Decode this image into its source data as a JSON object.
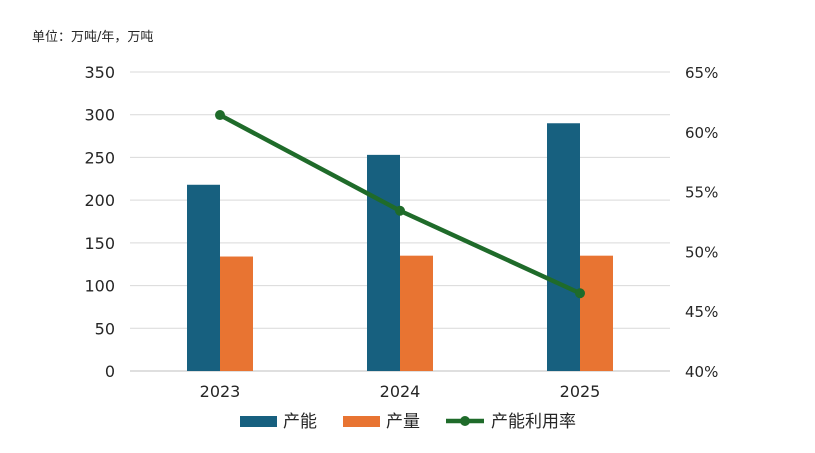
{
  "chart_data": {
    "type": "bar",
    "unit_note": "单位：万吨/年，万吨",
    "categories": [
      "2023",
      "2024",
      "2025"
    ],
    "series": [
      {
        "name": "产能",
        "type": "bar",
        "axis": "left",
        "color": "#17607f",
        "values": [
          218,
          253,
          290
        ]
      },
      {
        "name": "产量",
        "type": "bar",
        "axis": "left",
        "color": "#e87432",
        "values": [
          134,
          135,
          135
        ]
      },
      {
        "name": "产能利用率",
        "type": "line",
        "axis": "right",
        "color": "#1f6b2a",
        "values": [
          61.4,
          53.4,
          46.5
        ]
      }
    ],
    "y_left": {
      "min": 0,
      "max": 350,
      "step": 50,
      "ticks": [
        "0",
        "50",
        "100",
        "150",
        "200",
        "250",
        "300",
        "350"
      ]
    },
    "y_right": {
      "min": 40,
      "max": 65,
      "step": 5,
      "ticks": [
        "40%",
        "45%",
        "50%",
        "55%",
        "60%",
        "65%"
      ]
    },
    "grid": true,
    "legend_position": "bottom"
  }
}
